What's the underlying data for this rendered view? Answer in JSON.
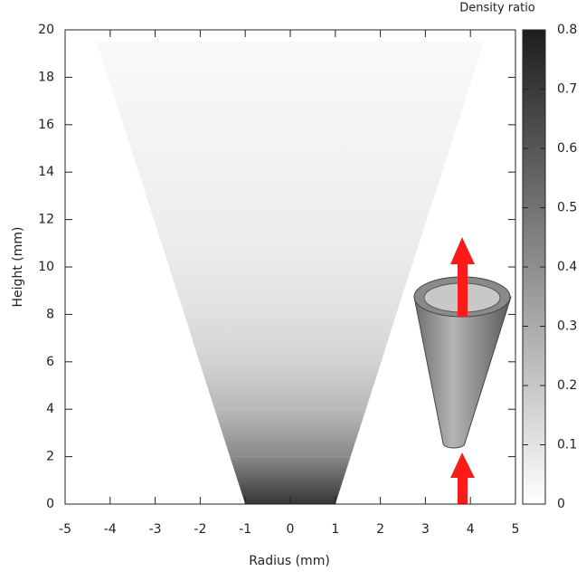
{
  "chart_data": {
    "type": "cone-heatmap",
    "xlabel": "Radius (mm)",
    "ylabel": "Height (mm)",
    "xlim": [
      -5,
      5
    ],
    "xticks": [
      -5,
      -4,
      -3,
      -2,
      -1,
      0,
      1,
      2,
      3,
      4,
      5
    ],
    "ylim": [
      0,
      20
    ],
    "yticks": [
      0,
      2,
      4,
      6,
      8,
      10,
      12,
      14,
      16,
      18,
      20
    ],
    "colorbar_title": "Density ratio",
    "clim": [
      0,
      0.8
    ],
    "cticks": [
      0,
      0.1,
      0.2,
      0.3,
      0.4,
      0.5,
      0.6,
      0.7,
      0.8
    ],
    "colormap": [
      "#ffffff",
      "#1e1e1e"
    ],
    "cone": {
      "height": [
        0,
        2,
        4,
        6,
        8,
        10,
        12,
        14,
        16,
        18,
        19.5
      ],
      "half_width": [
        1,
        1.34,
        1.68,
        2.02,
        2.35,
        2.69,
        3.03,
        3.37,
        3.71,
        4.05,
        4.3
      ],
      "density": [
        0.72,
        0.42,
        0.25,
        0.16,
        0.11,
        0.08,
        0.06,
        0.05,
        0.04,
        0.03,
        0.02
      ]
    }
  }
}
